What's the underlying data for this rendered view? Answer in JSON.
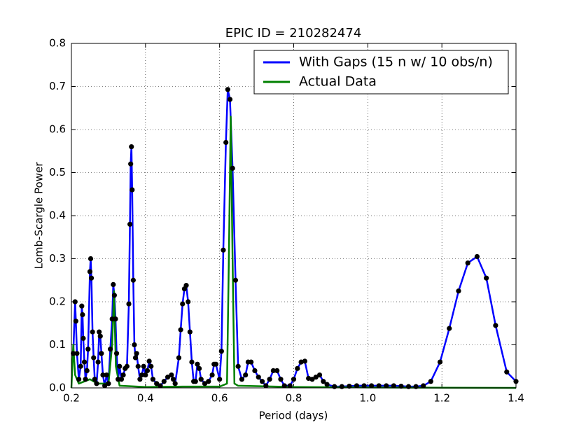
{
  "chart_data": {
    "type": "line",
    "title": "EPIC ID = 210282474",
    "xlabel": "Period (days)",
    "ylabel": "Lomb-Scargle Power",
    "xlim": [
      0.2,
      1.4
    ],
    "ylim": [
      0,
      0.8
    ],
    "xticks": [
      0.2,
      0.4,
      0.6,
      0.8,
      {
        "value": 1,
        "label": "1.0"
      },
      1.2,
      1.4
    ],
    "yticks": [
      {
        "value": 0,
        "label": "0.0"
      },
      0.1,
      0.2,
      0.3,
      0.4,
      0.5,
      0.6,
      0.7,
      0.8
    ],
    "grid": true,
    "legend": "upper right",
    "marker_color": "#000000",
    "series": [
      {
        "name": "With Gaps (15 n w/ 10 obs/n)",
        "color": "#0000ff",
        "markers": true,
        "x": [
          0.205,
          0.21,
          0.212,
          0.215,
          0.22,
          0.225,
          0.228,
          0.23,
          0.232,
          0.235,
          0.238,
          0.242,
          0.245,
          0.25,
          0.252,
          0.254,
          0.257,
          0.26,
          0.263,
          0.268,
          0.272,
          0.275,
          0.278,
          0.281,
          0.285,
          0.29,
          0.295,
          0.3,
          0.305,
          0.31,
          0.313,
          0.316,
          0.319,
          0.322,
          0.326,
          0.33,
          0.335,
          0.34,
          0.345,
          0.35,
          0.355,
          0.358,
          0.36,
          0.362,
          0.364,
          0.367,
          0.37,
          0.373,
          0.376,
          0.38,
          0.385,
          0.39,
          0.395,
          0.4,
          0.405,
          0.41,
          0.415,
          0.42,
          0.43,
          0.44,
          0.45,
          0.46,
          0.47,
          0.475,
          0.48,
          0.49,
          0.495,
          0.5,
          0.505,
          0.51,
          0.515,
          0.52,
          0.525,
          0.53,
          0.535,
          0.54,
          0.545,
          0.55,
          0.56,
          0.57,
          0.58,
          0.585,
          0.59,
          0.6,
          0.605,
          0.61,
          0.617,
          0.622,
          0.628,
          0.635,
          0.643,
          0.65,
          0.66,
          0.67,
          0.677,
          0.685,
          0.695,
          0.705,
          0.715,
          0.725,
          0.735,
          0.745,
          0.755,
          0.765,
          0.775,
          0.79,
          0.8,
          0.81,
          0.82,
          0.83,
          0.84,
          0.85,
          0.86,
          0.87,
          0.88,
          0.89,
          0.91,
          0.93,
          0.95,
          0.97,
          0.99,
          1.01,
          1.03,
          1.05,
          1.07,
          1.09,
          1.11,
          1.13,
          1.15,
          1.17,
          1.195,
          1.22,
          1.245,
          1.27,
          1.295,
          1.32,
          1.345,
          1.375,
          1.4
        ],
        "values": [
          0.08,
          0.2,
          0.155,
          0.08,
          0.02,
          0.05,
          0.19,
          0.17,
          0.115,
          0.06,
          0.02,
          0.04,
          0.09,
          0.27,
          0.3,
          0.255,
          0.13,
          0.07,
          0.02,
          0.01,
          0.06,
          0.13,
          0.12,
          0.08,
          0.03,
          0.005,
          0.03,
          0.01,
          0.09,
          0.16,
          0.24,
          0.215,
          0.16,
          0.08,
          0.02,
          0.05,
          0.02,
          0.03,
          0.045,
          0.05,
          0.195,
          0.38,
          0.52,
          0.56,
          0.46,
          0.25,
          0.1,
          0.07,
          0.08,
          0.05,
          0.02,
          0.03,
          0.05,
          0.03,
          0.04,
          0.062,
          0.05,
          0.02,
          0.01,
          0.005,
          0.015,
          0.025,
          0.03,
          0.02,
          0.01,
          0.07,
          0.135,
          0.195,
          0.23,
          0.238,
          0.2,
          0.13,
          0.06,
          0.015,
          0.015,
          0.055,
          0.045,
          0.02,
          0.01,
          0.015,
          0.03,
          0.055,
          0.055,
          0.02,
          0.085,
          0.32,
          0.57,
          0.693,
          0.67,
          0.51,
          0.25,
          0.05,
          0.02,
          0.03,
          0.06,
          0.06,
          0.04,
          0.025,
          0.015,
          0.005,
          0.02,
          0.04,
          0.04,
          0.02,
          0.005,
          0.005,
          0.02,
          0.045,
          0.06,
          0.062,
          0.022,
          0.02,
          0.025,
          0.03,
          0.015,
          0.008,
          0.003,
          0.003,
          0.004,
          0.005,
          0.005,
          0.005,
          0.005,
          0.005,
          0.005,
          0.004,
          0.003,
          0.003,
          0.005,
          0.015,
          0.06,
          0.138,
          0.225,
          0.29,
          0.305,
          0.255,
          0.145,
          0.037,
          0.015
        ]
      },
      {
        "name": "Actual Data",
        "color": "#008000",
        "markers": false,
        "x": [
          0.2,
          0.205,
          0.21,
          0.22,
          0.25,
          0.27,
          0.3,
          0.31,
          0.315,
          0.32,
          0.33,
          0.4,
          0.5,
          0.6,
          0.62,
          0.625,
          0.63,
          0.635,
          0.64,
          0.65,
          0.8,
          1.0,
          1.4
        ],
        "values": [
          0,
          0.1,
          0.03,
          0.01,
          0.02,
          0.01,
          0.01,
          0.1,
          0.225,
          0.05,
          0.005,
          0.002,
          0.003,
          0.003,
          0.01,
          0.3,
          0.63,
          0.3,
          0.01,
          0.005,
          0.002,
          0.001,
          0
        ]
      }
    ]
  }
}
